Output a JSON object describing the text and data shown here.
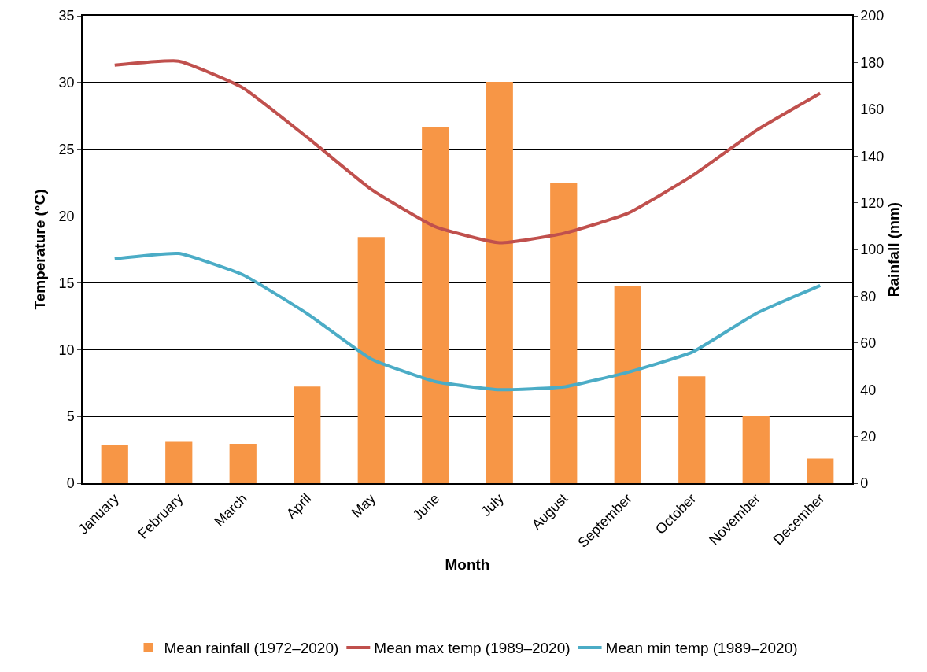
{
  "chart_data": {
    "type": "bar",
    "xlabel": "Month",
    "ylabel": "Temperature (°C)",
    "y2label": "Rainfall (mm)",
    "categories": [
      "January",
      "February",
      "March",
      "April",
      "May",
      "June",
      "July",
      "August",
      "September",
      "October",
      "November",
      "December"
    ],
    "series": [
      {
        "name": "Mean rainfall (1972–2020)",
        "axis": "y2",
        "color": "#f79646",
        "values": [
          16.5,
          17.7,
          16.8,
          41.3,
          105.3,
          152.5,
          171.7,
          128.6,
          84.2,
          45.7,
          28.6,
          10.6
        ]
      },
      {
        "name": "Mean max temp (1989–2020)",
        "type": "line",
        "color": "#c0504d",
        "values": [
          31.3,
          31.6,
          29.6,
          25.9,
          22.0,
          19.2,
          18.0,
          18.7,
          20.2,
          23.0,
          26.4,
          29.2
        ]
      },
      {
        "name": "Mean min temp (1989–2020)",
        "type": "line",
        "color": "#4bacc6",
        "values": [
          16.8,
          17.2,
          15.6,
          12.7,
          9.3,
          7.6,
          7.0,
          7.2,
          8.3,
          9.8,
          12.7,
          14.8
        ]
      }
    ],
    "ylim": [
      0,
      35
    ],
    "yticks": [
      0,
      5,
      10,
      15,
      20,
      25,
      30,
      35
    ],
    "y2lim": [
      0,
      200
    ],
    "y2ticks": [
      0,
      20,
      40,
      60,
      80,
      100,
      120,
      140,
      160,
      180,
      200
    ],
    "grid": "y",
    "legend": "bottom",
    "marker": "none",
    "line_style": "solid"
  }
}
